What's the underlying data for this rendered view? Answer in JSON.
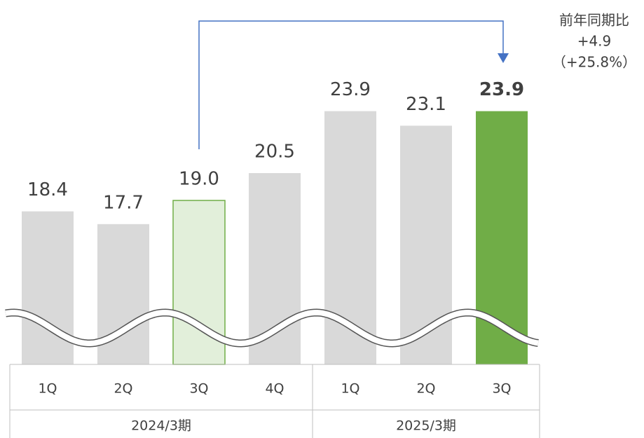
{
  "chart_data": {
    "type": "bar",
    "groups": [
      {
        "label": "2024/3期",
        "categories": [
          "1Q",
          "2Q",
          "3Q",
          "4Q"
        ]
      },
      {
        "label": "2025/3期",
        "categories": [
          "1Q",
          "2Q",
          "3Q"
        ]
      }
    ],
    "values": [
      18.4,
      17.7,
      19.0,
      20.5,
      23.9,
      23.1,
      23.9
    ],
    "value_labels": [
      "18.4",
      "17.7",
      "19.0",
      "20.5",
      "23.9",
      "23.1",
      "23.9"
    ],
    "colors": [
      "#d9d9d9",
      "#d9d9d9",
      "#e2efda",
      "#d9d9d9",
      "#d9d9d9",
      "#d9d9d9",
      "#70ad47"
    ],
    "ylim": [
      10,
      26
    ],
    "annotation": [
      "前年同期比",
      "+4.9",
      "（+25.8%）"
    ]
  }
}
